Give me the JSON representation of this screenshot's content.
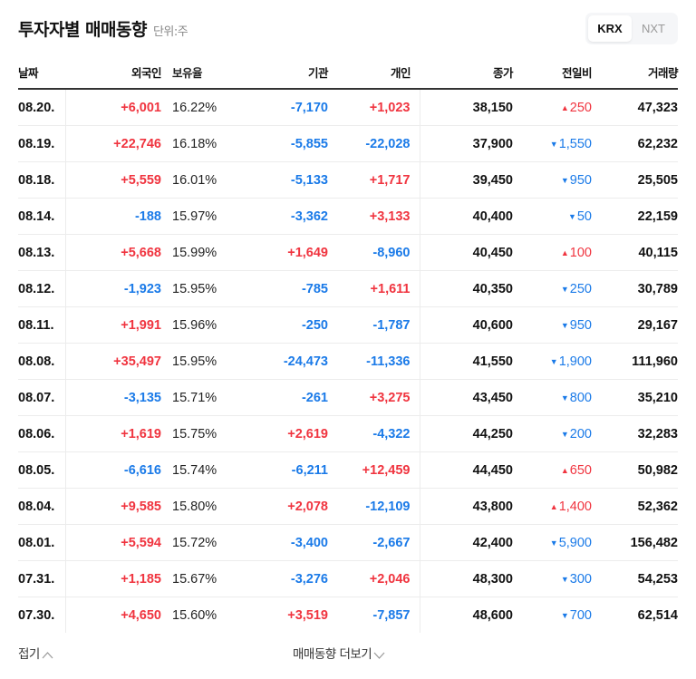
{
  "header": {
    "title": "투자자별 매매동향",
    "unit": "단위:주"
  },
  "market_toggle": {
    "options": [
      {
        "label": "KRX",
        "active": true
      },
      {
        "label": "NXT",
        "active": false
      }
    ]
  },
  "table": {
    "columns": [
      "날짜",
      "외국인",
      "보유율",
      "기관",
      "개인",
      "종가",
      "전일비",
      "거래량"
    ],
    "rows": [
      {
        "date": "08.20.",
        "foreign": "+6,001",
        "foreign_dir": "up",
        "ratio": "16.22%",
        "inst": "-7,170",
        "inst_dir": "down",
        "indiv": "+1,023",
        "indiv_dir": "up",
        "close": "38,150",
        "change": "250",
        "change_dir": "up",
        "volume": "47,323"
      },
      {
        "date": "08.19.",
        "foreign": "+22,746",
        "foreign_dir": "up",
        "ratio": "16.18%",
        "inst": "-5,855",
        "inst_dir": "down",
        "indiv": "-22,028",
        "indiv_dir": "down",
        "close": "37,900",
        "change": "1,550",
        "change_dir": "down",
        "volume": "62,232"
      },
      {
        "date": "08.18.",
        "foreign": "+5,559",
        "foreign_dir": "up",
        "ratio": "16.01%",
        "inst": "-5,133",
        "inst_dir": "down",
        "indiv": "+1,717",
        "indiv_dir": "up",
        "close": "39,450",
        "change": "950",
        "change_dir": "down",
        "volume": "25,505"
      },
      {
        "date": "08.14.",
        "foreign": "-188",
        "foreign_dir": "down",
        "ratio": "15.97%",
        "inst": "-3,362",
        "inst_dir": "down",
        "indiv": "+3,133",
        "indiv_dir": "up",
        "close": "40,400",
        "change": "50",
        "change_dir": "down",
        "volume": "22,159"
      },
      {
        "date": "08.13.",
        "foreign": "+5,668",
        "foreign_dir": "up",
        "ratio": "15.99%",
        "inst": "+1,649",
        "inst_dir": "up",
        "indiv": "-8,960",
        "indiv_dir": "down",
        "close": "40,450",
        "change": "100",
        "change_dir": "up",
        "volume": "40,115"
      },
      {
        "date": "08.12.",
        "foreign": "-1,923",
        "foreign_dir": "down",
        "ratio": "15.95%",
        "inst": "-785",
        "inst_dir": "down",
        "indiv": "+1,611",
        "indiv_dir": "up",
        "close": "40,350",
        "change": "250",
        "change_dir": "down",
        "volume": "30,789"
      },
      {
        "date": "08.11.",
        "foreign": "+1,991",
        "foreign_dir": "up",
        "ratio": "15.96%",
        "inst": "-250",
        "inst_dir": "down",
        "indiv": "-1,787",
        "indiv_dir": "down",
        "close": "40,600",
        "change": "950",
        "change_dir": "down",
        "volume": "29,167"
      },
      {
        "date": "08.08.",
        "foreign": "+35,497",
        "foreign_dir": "up",
        "ratio": "15.95%",
        "inst": "-24,473",
        "inst_dir": "down",
        "indiv": "-11,336",
        "indiv_dir": "down",
        "close": "41,550",
        "change": "1,900",
        "change_dir": "down",
        "volume": "111,960"
      },
      {
        "date": "08.07.",
        "foreign": "-3,135",
        "foreign_dir": "down",
        "ratio": "15.71%",
        "inst": "-261",
        "inst_dir": "down",
        "indiv": "+3,275",
        "indiv_dir": "up",
        "close": "43,450",
        "change": "800",
        "change_dir": "down",
        "volume": "35,210"
      },
      {
        "date": "08.06.",
        "foreign": "+1,619",
        "foreign_dir": "up",
        "ratio": "15.75%",
        "inst": "+2,619",
        "inst_dir": "up",
        "indiv": "-4,322",
        "indiv_dir": "down",
        "close": "44,250",
        "change": "200",
        "change_dir": "down",
        "volume": "32,283"
      },
      {
        "date": "08.05.",
        "foreign": "-6,616",
        "foreign_dir": "down",
        "ratio": "15.74%",
        "inst": "-6,211",
        "inst_dir": "down",
        "indiv": "+12,459",
        "indiv_dir": "up",
        "close": "44,450",
        "change": "650",
        "change_dir": "up",
        "volume": "50,982"
      },
      {
        "date": "08.04.",
        "foreign": "+9,585",
        "foreign_dir": "up",
        "ratio": "15.80%",
        "inst": "+2,078",
        "inst_dir": "up",
        "indiv": "-12,109",
        "indiv_dir": "down",
        "close": "43,800",
        "change": "1,400",
        "change_dir": "up",
        "volume": "52,362"
      },
      {
        "date": "08.01.",
        "foreign": "+5,594",
        "foreign_dir": "up",
        "ratio": "15.72%",
        "inst": "-3,400",
        "inst_dir": "down",
        "indiv": "-2,667",
        "indiv_dir": "down",
        "close": "42,400",
        "change": "5,900",
        "change_dir": "down",
        "volume": "156,482"
      },
      {
        "date": "07.31.",
        "foreign": "+1,185",
        "foreign_dir": "up",
        "ratio": "15.67%",
        "inst": "-3,276",
        "inst_dir": "down",
        "indiv": "+2,046",
        "indiv_dir": "up",
        "close": "48,300",
        "change": "300",
        "change_dir": "down",
        "volume": "54,253"
      },
      {
        "date": "07.30.",
        "foreign": "+4,650",
        "foreign_dir": "up",
        "ratio": "15.60%",
        "inst": "+3,519",
        "inst_dir": "up",
        "indiv": "-7,857",
        "indiv_dir": "down",
        "close": "48,600",
        "change": "700",
        "change_dir": "down",
        "volume": "62,514"
      }
    ]
  },
  "footer": {
    "fold_label": "접기",
    "more_label": "매매동향 더보기"
  },
  "colors": {
    "up": "#f0343f",
    "down": "#1a7ae8",
    "text": "#111111",
    "muted": "#888888"
  },
  "icons": {
    "up_triangle": "▲",
    "down_triangle": "▼"
  }
}
